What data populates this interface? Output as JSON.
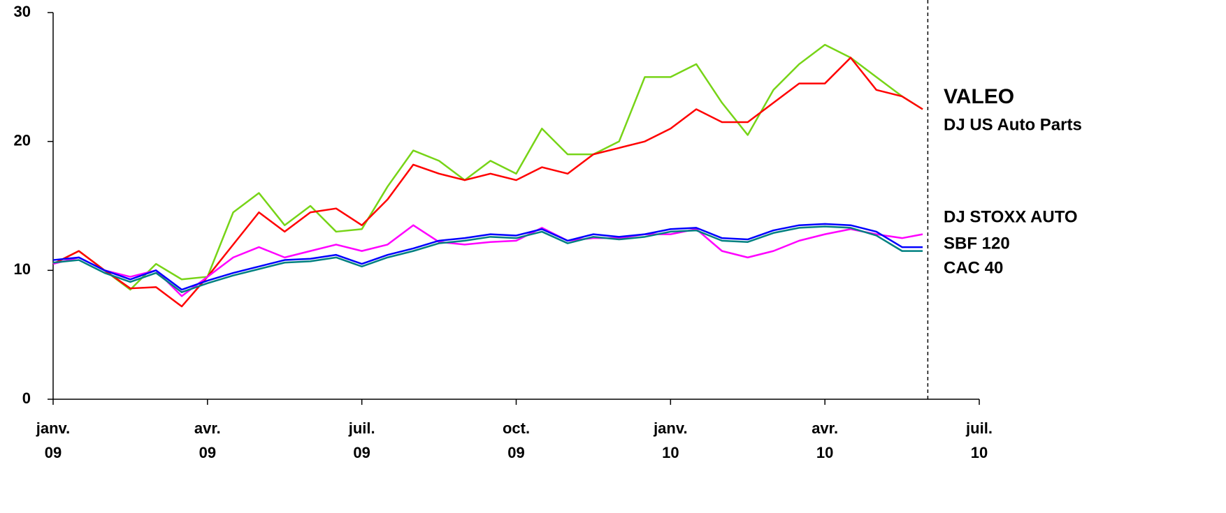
{
  "chart_data": {
    "type": "line",
    "x": [
      0,
      0.5,
      1,
      1.5,
      2,
      2.5,
      3,
      3.5,
      4,
      4.5,
      5,
      5.5,
      6,
      6.5,
      7,
      7.5,
      8,
      8.5,
      9,
      9.5,
      10,
      10.5,
      11,
      11.5,
      12,
      12.5,
      13,
      13.5,
      14,
      14.5,
      15,
      15.5,
      16,
      16.5,
      16.9
    ],
    "series": [
      {
        "name": "VALEO",
        "color": "#77d417",
        "values": [
          10.5,
          11.5,
          10,
          8.5,
          10.5,
          9.3,
          9.5,
          14.5,
          16,
          13.5,
          15,
          13,
          13.2,
          16.5,
          19.3,
          18.5,
          17,
          18.5,
          17.5,
          21,
          19,
          19,
          20,
          25,
          25,
          26,
          23,
          20.5,
          24,
          26,
          27.5,
          26.5,
          25,
          23.5,
          22.5
        ]
      },
      {
        "name": "DJ US Auto Parts",
        "color": "#ff0000",
        "values": [
          10.5,
          11.5,
          10,
          8.6,
          8.7,
          7.2,
          9.5,
          12,
          14.5,
          13,
          14.5,
          14.8,
          13.5,
          15.5,
          18.2,
          17.5,
          17,
          17.5,
          17,
          18,
          17.5,
          19,
          19.5,
          20,
          21,
          22.5,
          21.5,
          21.5,
          23,
          24.5,
          24.5,
          26.5,
          24,
          23.5,
          22.5
        ]
      },
      {
        "name": "DJ STOXX AUTO",
        "color": "#ff00ff",
        "values": [
          10.5,
          11,
          10,
          9.5,
          10,
          8,
          9.5,
          11,
          11.8,
          11,
          11.5,
          12,
          11.5,
          12,
          13.5,
          12.2,
          12,
          12.2,
          12.3,
          13.3,
          12.3,
          12.5,
          12.5,
          12.8,
          12.8,
          13.2,
          11.5,
          11,
          11.5,
          12.3,
          12.8,
          13.2,
          12.8,
          12.5,
          12.8
        ]
      },
      {
        "name": "SBF 120",
        "color": "#0000ff",
        "values": [
          10.8,
          11,
          10,
          9.3,
          10,
          8.5,
          9.2,
          9.8,
          10.3,
          10.8,
          10.9,
          11.2,
          10.5,
          11.2,
          11.7,
          12.3,
          12.5,
          12.8,
          12.7,
          13.2,
          12.3,
          12.8,
          12.6,
          12.8,
          13.2,
          13.3,
          12.5,
          12.4,
          13.1,
          13.5,
          13.6,
          13.5,
          13,
          11.8,
          11.8
        ]
      },
      {
        "name": "CAC 40",
        "color": "#008080",
        "values": [
          10.6,
          10.8,
          9.8,
          9.1,
          9.8,
          8.3,
          9,
          9.6,
          10.1,
          10.6,
          10.7,
          11,
          10.3,
          11,
          11.5,
          12.1,
          12.3,
          12.6,
          12.5,
          13,
          12.1,
          12.6,
          12.4,
          12.6,
          13,
          13.1,
          12.3,
          12.2,
          12.9,
          13.3,
          13.4,
          13.3,
          12.7,
          11.5,
          11.5
        ]
      }
    ],
    "xlim": [
      0,
      18
    ],
    "xticks": [
      {
        "value": 0,
        "label": "janv. 09"
      },
      {
        "value": 3,
        "label": "avr. 09"
      },
      {
        "value": 6,
        "label": "juil. 09"
      },
      {
        "value": 9,
        "label": "oct. 09"
      },
      {
        "value": 12,
        "label": "janv. 10"
      },
      {
        "value": 15,
        "label": "avr. 10"
      },
      {
        "value": 18,
        "label": "juil. 10"
      }
    ],
    "ylim": [
      0,
      30
    ],
    "yticks": [
      0,
      10,
      20,
      30
    ],
    "vline_x": 17,
    "grid": false
  }
}
